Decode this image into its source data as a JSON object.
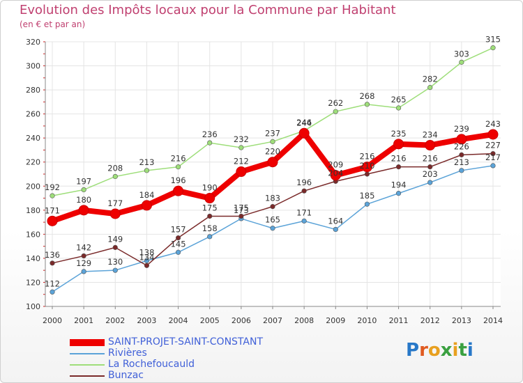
{
  "header": {
    "title": "Evolution des Impôts locaux pour la Commune par Habitant",
    "subtitle": "(en € et par an)"
  },
  "logo": {
    "text": "Proxiti",
    "letter_colors": [
      "#2878c8",
      "#e05a20",
      "#e8a020",
      "#3aa040",
      "#e8a020",
      "#3aa040",
      "#2878c8"
    ]
  },
  "chart_data": {
    "type": "line",
    "title": "Evolution des Impôts locaux pour la Commune par Habitant",
    "subtitle": "(en € et par an)",
    "xlabel": "",
    "ylabel": "",
    "x": [
      "2000",
      "2001",
      "2002",
      "2003",
      "2004",
      "2005",
      "2006",
      "2007",
      "2008",
      "2009",
      "2010",
      "2011",
      "2012",
      "2013",
      "2014"
    ],
    "ylim": [
      100,
      320
    ],
    "yticks": [
      100,
      120,
      140,
      160,
      180,
      200,
      220,
      240,
      260,
      280,
      300,
      320
    ],
    "grid": true,
    "legend_position": "bottom-left",
    "series": [
      {
        "name": "SAINT-PROJET-SAINT-CONSTANT",
        "color": "#ee0000",
        "values": [
          171,
          180,
          177,
          184,
          196,
          190,
          212,
          220,
          244,
          209,
          216,
          235,
          234,
          239,
          243
        ]
      },
      {
        "name": "Rivières",
        "color": "#5ba3d8",
        "values": [
          112,
          129,
          130,
          138,
          145,
          158,
          173,
          165,
          171,
          164,
          185,
          194,
          203,
          213,
          217
        ]
      },
      {
        "name": "La Rochefoucauld",
        "color": "#9ede7a",
        "values": [
          192,
          197,
          208,
          213,
          216,
          236,
          232,
          237,
          246,
          262,
          268,
          265,
          282,
          303,
          315
        ]
      },
      {
        "name": "Bunzac",
        "color": "#7a2a2a",
        "values": [
          136,
          142,
          149,
          134,
          157,
          175,
          175,
          183,
          196,
          204,
          210,
          216,
          216,
          226,
          227
        ]
      }
    ]
  }
}
